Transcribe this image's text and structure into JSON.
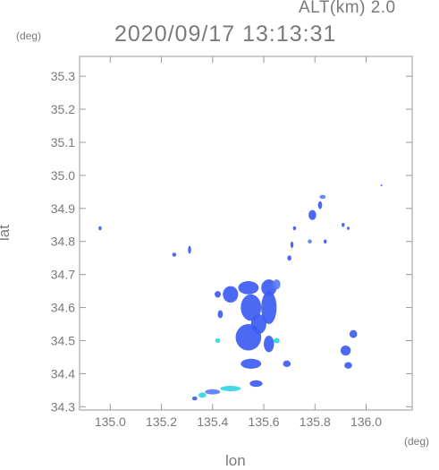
{
  "header": {
    "altitude": "ALT(km)  2.0",
    "timestamp": "2020/09/17  13:13:31"
  },
  "chart_data": {
    "type": "scatter",
    "xlabel": "lon",
    "ylabel": "lat",
    "xunit": "(deg)",
    "yunit": "(deg)",
    "xlim": [
      134.88,
      136.18
    ],
    "ylim": [
      34.29,
      35.36
    ],
    "x_ticks": [
      135.0,
      135.2,
      135.4,
      135.6,
      135.8,
      136.0
    ],
    "x_tick_labels": [
      "135.0",
      "135.2",
      "135.4",
      "135.6",
      "135.8",
      "136.0"
    ],
    "y_ticks": [
      34.3,
      34.4,
      34.5,
      34.6,
      34.7,
      34.8,
      34.9,
      35.0,
      35.1,
      35.2,
      35.3
    ],
    "y_tick_labels": [
      "34.3",
      "34.4",
      "34.5",
      "34.6",
      "34.7",
      "34.8",
      "34.9",
      "35.0",
      "35.1",
      "35.2",
      "35.3"
    ],
    "grid": false,
    "colors": {
      "frame": "#9a9a9a",
      "echo_primary": "#3d5cf2",
      "echo_secondary": "#5a7df5",
      "echo_light": "#2fd6e6"
    },
    "echo_cells": [
      {
        "lon": 134.96,
        "lat": 34.84,
        "rlon": 0.006,
        "rlat": 0.006,
        "level": "primary"
      },
      {
        "lon": 135.25,
        "lat": 34.76,
        "rlon": 0.008,
        "rlat": 0.006,
        "level": "primary"
      },
      {
        "lon": 135.31,
        "lat": 34.775,
        "rlon": 0.006,
        "rlat": 0.012,
        "level": "primary"
      },
      {
        "lon": 135.54,
        "lat": 34.66,
        "rlon": 0.04,
        "rlat": 0.02,
        "level": "primary"
      },
      {
        "lon": 135.47,
        "lat": 34.64,
        "rlon": 0.03,
        "rlat": 0.025,
        "level": "primary"
      },
      {
        "lon": 135.55,
        "lat": 34.6,
        "rlon": 0.04,
        "rlat": 0.04,
        "level": "primary"
      },
      {
        "lon": 135.62,
        "lat": 34.6,
        "rlon": 0.03,
        "rlat": 0.05,
        "level": "primary"
      },
      {
        "lon": 135.62,
        "lat": 34.66,
        "rlon": 0.03,
        "rlat": 0.025,
        "level": "primary"
      },
      {
        "lon": 135.65,
        "lat": 34.67,
        "rlon": 0.015,
        "rlat": 0.015,
        "level": "secondary"
      },
      {
        "lon": 135.58,
        "lat": 34.55,
        "rlon": 0.03,
        "rlat": 0.03,
        "level": "primary"
      },
      {
        "lon": 135.54,
        "lat": 34.51,
        "rlon": 0.05,
        "rlat": 0.04,
        "level": "primary"
      },
      {
        "lon": 135.62,
        "lat": 34.49,
        "rlon": 0.02,
        "rlat": 0.025,
        "level": "primary"
      },
      {
        "lon": 135.65,
        "lat": 34.5,
        "rlon": 0.012,
        "rlat": 0.008,
        "level": "light"
      },
      {
        "lon": 135.42,
        "lat": 34.5,
        "rlon": 0.01,
        "rlat": 0.007,
        "level": "light"
      },
      {
        "lon": 135.55,
        "lat": 34.43,
        "rlon": 0.04,
        "rlat": 0.015,
        "level": "primary"
      },
      {
        "lon": 135.57,
        "lat": 34.37,
        "rlon": 0.025,
        "rlat": 0.01,
        "level": "primary"
      },
      {
        "lon": 135.69,
        "lat": 34.43,
        "rlon": 0.015,
        "rlat": 0.01,
        "level": "primary"
      },
      {
        "lon": 135.43,
        "lat": 34.58,
        "rlon": 0.01,
        "rlat": 0.012,
        "level": "primary"
      },
      {
        "lon": 135.42,
        "lat": 34.64,
        "rlon": 0.012,
        "rlat": 0.01,
        "level": "primary"
      },
      {
        "lon": 135.79,
        "lat": 34.88,
        "rlon": 0.015,
        "rlat": 0.015,
        "level": "primary"
      },
      {
        "lon": 135.82,
        "lat": 34.91,
        "rlon": 0.008,
        "rlat": 0.012,
        "level": "primary"
      },
      {
        "lon": 135.83,
        "lat": 34.935,
        "rlon": 0.012,
        "rlat": 0.006,
        "level": "secondary"
      },
      {
        "lon": 135.72,
        "lat": 34.84,
        "rlon": 0.006,
        "rlat": 0.006,
        "level": "primary"
      },
      {
        "lon": 135.71,
        "lat": 34.79,
        "rlon": 0.006,
        "rlat": 0.01,
        "level": "primary"
      },
      {
        "lon": 135.7,
        "lat": 34.75,
        "rlon": 0.008,
        "rlat": 0.008,
        "level": "primary"
      },
      {
        "lon": 135.78,
        "lat": 34.8,
        "rlon": 0.008,
        "rlat": 0.006,
        "level": "secondary"
      },
      {
        "lon": 135.84,
        "lat": 34.8,
        "rlon": 0.006,
        "rlat": 0.006,
        "level": "primary"
      },
      {
        "lon": 135.91,
        "lat": 34.85,
        "rlon": 0.006,
        "rlat": 0.006,
        "level": "primary"
      },
      {
        "lon": 135.93,
        "lat": 34.84,
        "rlon": 0.005,
        "rlat": 0.005,
        "level": "primary"
      },
      {
        "lon": 135.95,
        "lat": 34.52,
        "rlon": 0.015,
        "rlat": 0.012,
        "level": "primary"
      },
      {
        "lon": 135.92,
        "lat": 34.47,
        "rlon": 0.02,
        "rlat": 0.015,
        "level": "primary"
      },
      {
        "lon": 135.93,
        "lat": 34.425,
        "rlon": 0.015,
        "rlat": 0.01,
        "level": "primary"
      },
      {
        "lon": 135.4,
        "lat": 34.345,
        "rlon": 0.03,
        "rlat": 0.008,
        "level": "secondary"
      },
      {
        "lon": 135.47,
        "lat": 34.355,
        "rlon": 0.04,
        "rlat": 0.008,
        "level": "light"
      },
      {
        "lon": 135.36,
        "lat": 34.335,
        "rlon": 0.015,
        "rlat": 0.008,
        "level": "light"
      },
      {
        "lon": 135.33,
        "lat": 34.325,
        "rlon": 0.01,
        "rlat": 0.006,
        "level": "primary"
      },
      {
        "lon": 136.06,
        "lat": 34.97,
        "rlon": 0.002,
        "rlat": 0.002,
        "level": "primary"
      }
    ]
  }
}
